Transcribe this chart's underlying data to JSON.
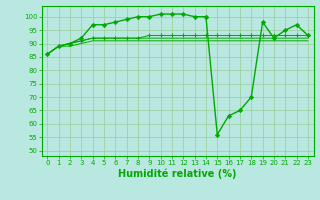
{
  "line1_x": [
    0,
    1,
    2,
    3,
    4,
    5,
    6,
    7,
    8,
    9,
    10,
    11,
    12,
    13,
    14
  ],
  "line1_y": [
    86,
    89,
    90,
    92,
    97,
    97,
    98,
    99,
    100,
    100,
    101,
    101,
    101,
    100,
    100
  ],
  "line2_x": [
    14,
    15,
    16,
    17,
    18,
    19,
    20,
    21,
    22,
    23
  ],
  "line2_y": [
    100,
    56,
    63,
    65,
    70,
    98,
    92,
    95,
    97,
    93
  ],
  "flat1_x": [
    0,
    1,
    2,
    3,
    4,
    5,
    6,
    7,
    8,
    9,
    10,
    11,
    12,
    13,
    14,
    15,
    16,
    17,
    18,
    19,
    20,
    21,
    22,
    23
  ],
  "flat1_y": [
    86,
    89,
    90,
    91,
    92,
    92,
    92,
    92,
    92,
    93,
    93,
    93,
    93,
    93,
    93,
    93,
    93,
    93,
    93,
    93,
    93,
    93,
    93,
    93
  ],
  "flat2_x": [
    0,
    1,
    2,
    3,
    4,
    5,
    6,
    7,
    8,
    9,
    10,
    11,
    12,
    13,
    14,
    15,
    16,
    17,
    18,
    19,
    20,
    21,
    22,
    23
  ],
  "flat2_y": [
    86,
    89,
    89,
    90,
    91,
    91,
    91,
    91,
    91,
    91,
    91,
    91,
    91,
    91,
    91,
    91,
    91,
    91,
    91,
    91,
    91,
    91,
    91,
    91
  ],
  "flat3_x": [
    0,
    1,
    2,
    3,
    4,
    5,
    6,
    7,
    8,
    9,
    10,
    11,
    12,
    13,
    14,
    15,
    16,
    17,
    18,
    19,
    20,
    21,
    22,
    23
  ],
  "flat3_y": [
    86,
    89,
    90,
    91,
    92,
    92,
    92,
    92,
    92,
    92,
    92,
    92,
    92,
    92,
    92,
    92,
    92,
    92,
    92,
    92,
    92,
    92,
    92,
    92
  ],
  "xlabel": "Humidité relative (%)",
  "xlim": [
    -0.5,
    23.5
  ],
  "ylim": [
    48,
    104
  ],
  "yticks": [
    50,
    55,
    60,
    65,
    70,
    75,
    80,
    85,
    90,
    95,
    100
  ],
  "xticks": [
    0,
    1,
    2,
    3,
    4,
    5,
    6,
    7,
    8,
    9,
    10,
    11,
    12,
    13,
    14,
    15,
    16,
    17,
    18,
    19,
    20,
    21,
    22,
    23
  ],
  "grid_color": "#99cc99",
  "bg_color": "#b8e8e0",
  "line_color": "#00aa00",
  "tick_fontsize": 5,
  "xlabel_fontsize": 7
}
